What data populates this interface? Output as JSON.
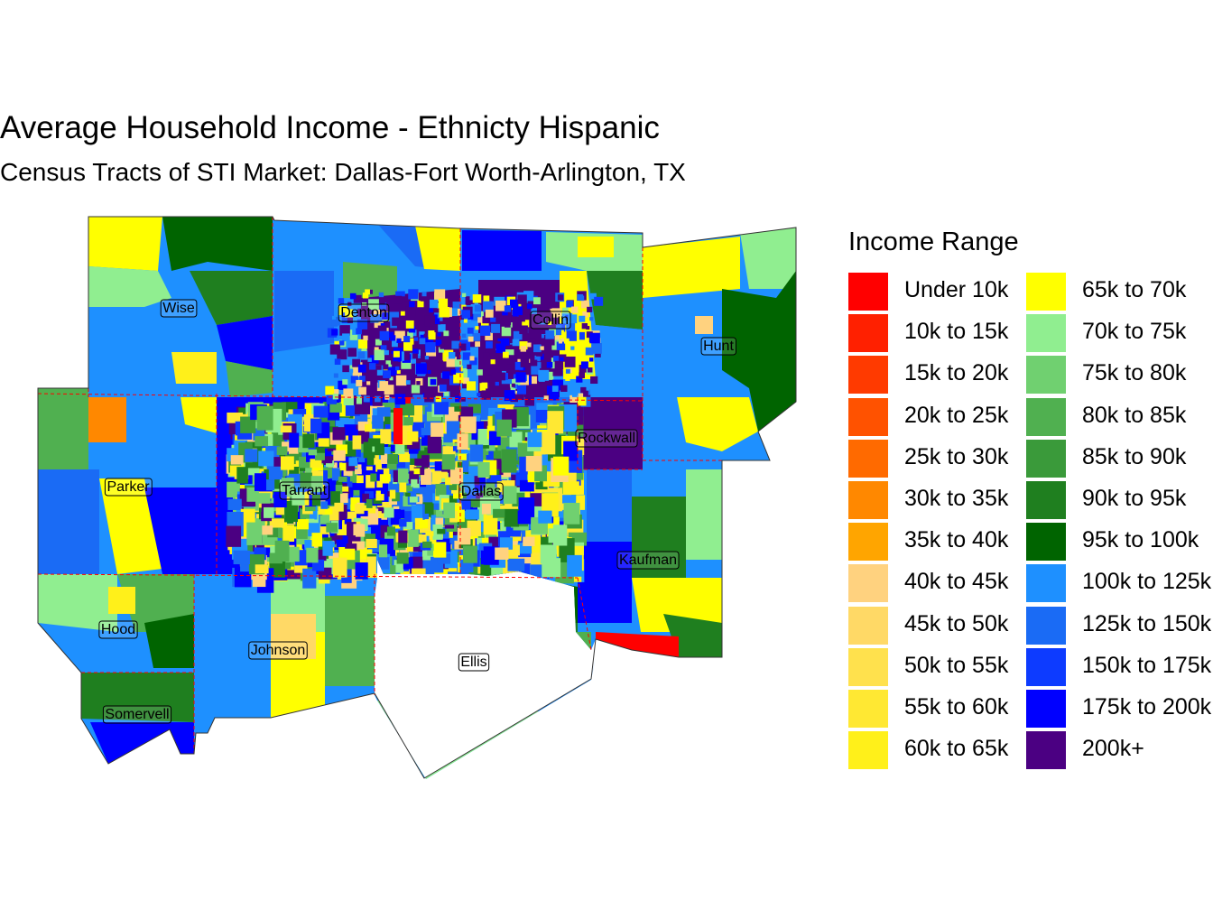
{
  "title": "Average Household Income - Ethnicty Hispanic",
  "subtitle": "Census Tracts of STI Market: Dallas-Fort Worth-Arlington, TX",
  "legend": {
    "title": "Income Range",
    "items": [
      {
        "label": "Under 10k",
        "color": "#FF0000"
      },
      {
        "label": "10k to 15k",
        "color": "#FF2000"
      },
      {
        "label": "15k to 20k",
        "color": "#FF3A00"
      },
      {
        "label": "20k to 25k",
        "color": "#FF5200"
      },
      {
        "label": "25k to 30k",
        "color": "#FF6A00"
      },
      {
        "label": "30k to 35k",
        "color": "#FF8800"
      },
      {
        "label": "35k to 40k",
        "color": "#FFA500"
      },
      {
        "label": "40k to 45k",
        "color": "#FFD27F"
      },
      {
        "label": "45k to 50k",
        "color": "#FFD966"
      },
      {
        "label": "50k to 55k",
        "color": "#FFE14D"
      },
      {
        "label": "55k to 60k",
        "color": "#FFE833"
      },
      {
        "label": "60k to 65k",
        "color": "#FFF01A"
      },
      {
        "label": "65k to 70k",
        "color": "#FFFF00"
      },
      {
        "label": "70k to 75k",
        "color": "#90EE90"
      },
      {
        "label": "75k to 80k",
        "color": "#70D070"
      },
      {
        "label": "80k to 85k",
        "color": "#50B050"
      },
      {
        "label": "85k to 90k",
        "color": "#3A9A3A"
      },
      {
        "label": "90k to 95k",
        "color": "#1F7F1F"
      },
      {
        "label": "95k to 100k",
        "color": "#006400"
      },
      {
        "label": "100k to 125k",
        "color": "#1E90FF"
      },
      {
        "label": "125k to 150k",
        "color": "#1A6BF5"
      },
      {
        "label": "150k to 175k",
        "color": "#0D3BFF"
      },
      {
        "label": "175k to 200k",
        "color": "#0000FF"
      },
      {
        "label": "200k+",
        "color": "#4B0082"
      }
    ]
  },
  "counties": [
    "Wise",
    "Denton",
    "Collin",
    "Hunt",
    "Parker",
    "Tarrant",
    "Dallas",
    "Rockwall",
    "Kaufman",
    "Hood",
    "Johnson",
    "Ellis",
    "Somervell"
  ]
}
